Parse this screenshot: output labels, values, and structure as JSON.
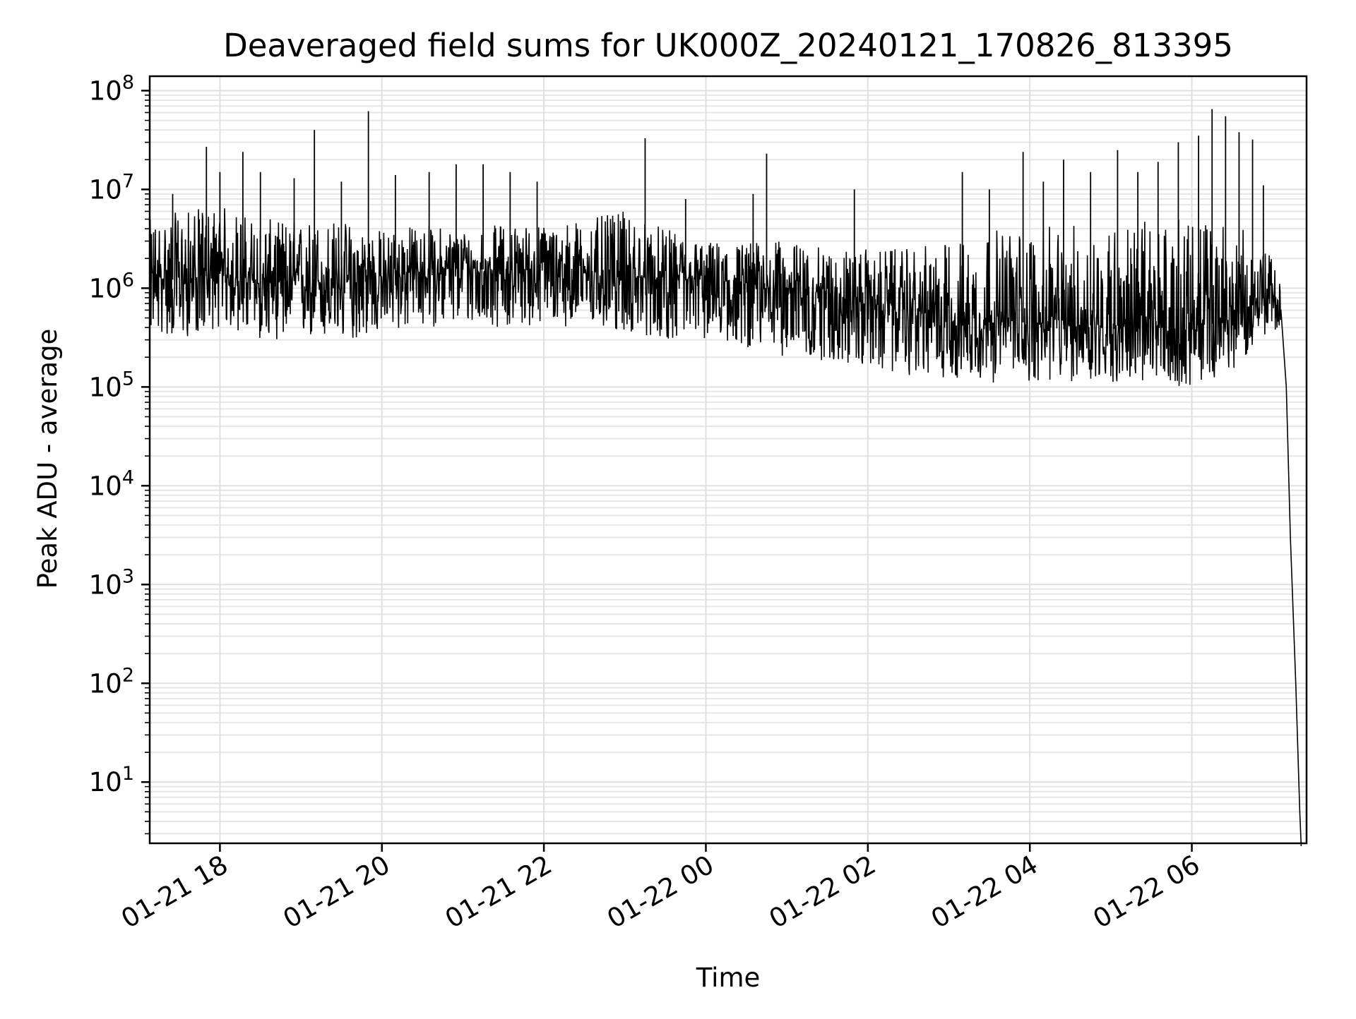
{
  "chart_data": {
    "type": "line",
    "title": "Deaveraged field sums for UK000Z_20240121_170826_813395",
    "xlabel": "Time",
    "ylabel": "Peak ADU - average",
    "x_ticks": [
      "01-21 18",
      "01-21 20",
      "01-21 22",
      "01-22 00",
      "01-22 02",
      "01-22 04",
      "01-22 06"
    ],
    "y_ticks": [
      {
        "base": "10",
        "exp": "1"
      },
      {
        "base": "10",
        "exp": "2"
      },
      {
        "base": "10",
        "exp": "3"
      },
      {
        "base": "10",
        "exp": "4"
      },
      {
        "base": "10",
        "exp": "5"
      },
      {
        "base": "10",
        "exp": "6"
      },
      {
        "base": "10",
        "exp": "7"
      },
      {
        "base": "10",
        "exp": "8"
      }
    ],
    "yscale": "log",
    "xlim": [
      "2024-01-21 17:08",
      "2024-01-22 07:25"
    ],
    "ylim": [
      2.4,
      140000000
    ],
    "grid": true,
    "line_color": "#000000",
    "series": [
      {
        "x": [
          "2024-01-21 17:08",
          "2024-01-21 17:30",
          "2024-01-21 18:00",
          "2024-01-21 18:30",
          "2024-01-21 19:00",
          "2024-01-21 19:30",
          "2024-01-21 20:00",
          "2024-01-21 20:30",
          "2024-01-21 21:00",
          "2024-01-21 21:30",
          "2024-01-21 22:00",
          "2024-01-21 22:30",
          "2024-01-21 23:00",
          "2024-01-21 23:30",
          "2024-01-22 00:00",
          "2024-01-22 00:30",
          "2024-01-22 01:00",
          "2024-01-22 01:30",
          "2024-01-22 02:00",
          "2024-01-22 02:30",
          "2024-01-22 03:00",
          "2024-01-22 03:30",
          "2024-01-22 04:00",
          "2024-01-22 04:30",
          "2024-01-22 05:00",
          "2024-01-22 05:30",
          "2024-01-22 06:00",
          "2024-01-22 06:30",
          "2024-01-22 07:00",
          "2024-01-22 07:05",
          "2024-01-22 07:10",
          "2024-01-22 07:13",
          "2024-01-22 07:17",
          "2024-01-22 07:20"
        ],
        "y_median": [
          1300000,
          1200000,
          1400000,
          1100000,
          1200000,
          1100000,
          1300000,
          1500000,
          1600000,
          1500000,
          1600000,
          1500000,
          1300000,
          1200000,
          1200000,
          1100000,
          1000000,
          900000,
          700000,
          600000,
          500000,
          450000,
          450000,
          420000,
          420000,
          400000,
          380000,
          500000,
          900000,
          700000,
          100000,
          3000,
          100,
          5
        ],
        "y_low": [
          350000,
          300000,
          400000,
          300000,
          300000,
          280000,
          350000,
          400000,
          420000,
          400000,
          420000,
          400000,
          350000,
          300000,
          300000,
          250000,
          200000,
          180000,
          150000,
          130000,
          120000,
          110000,
          110000,
          110000,
          110000,
          105000,
          100000,
          150000,
          400000,
          300000,
          100000,
          3000,
          100,
          5
        ],
        "y_high": [
          5000000,
          6000000,
          7000000,
          5000000,
          5000000,
          5000000,
          4000000,
          4500000,
          4000000,
          4500000,
          4500000,
          5000000,
          6000000,
          4000000,
          3000000,
          3000000,
          3000000,
          2500000,
          2500000,
          2500000,
          3000000,
          4000000,
          4000000,
          4500000,
          4500000,
          5000000,
          5000000,
          5000000,
          2000000,
          1200000,
          100000,
          3000,
          100,
          5
        ],
        "spikes": [
          {
            "x": "2024-01-21 17:25",
            "y": 9000000
          },
          {
            "x": "2024-01-21 17:50",
            "y": 27000000
          },
          {
            "x": "2024-01-21 18:00",
            "y": 15000000
          },
          {
            "x": "2024-01-21 18:17",
            "y": 24000000
          },
          {
            "x": "2024-01-21 18:30",
            "y": 15000000
          },
          {
            "x": "2024-01-21 18:55",
            "y": 13000000
          },
          {
            "x": "2024-01-21 19:10",
            "y": 40000000
          },
          {
            "x": "2024-01-21 19:30",
            "y": 12000000
          },
          {
            "x": "2024-01-21 19:50",
            "y": 62000000
          },
          {
            "x": "2024-01-21 20:10",
            "y": 14000000
          },
          {
            "x": "2024-01-21 20:35",
            "y": 15000000
          },
          {
            "x": "2024-01-21 20:55",
            "y": 18000000
          },
          {
            "x": "2024-01-21 21:15",
            "y": 18000000
          },
          {
            "x": "2024-01-21 21:35",
            "y": 15000000
          },
          {
            "x": "2024-01-21 21:55",
            "y": 12000000
          },
          {
            "x": "2024-01-21 23:15",
            "y": 33000000
          },
          {
            "x": "2024-01-21 23:45",
            "y": 8000000
          },
          {
            "x": "2024-01-22 00:35",
            "y": 9000000
          },
          {
            "x": "2024-01-22 00:45",
            "y": 23000000
          },
          {
            "x": "2024-01-22 01:50",
            "y": 10000000
          },
          {
            "x": "2024-01-22 03:10",
            "y": 15000000
          },
          {
            "x": "2024-01-22 03:30",
            "y": 10000000
          },
          {
            "x": "2024-01-22 03:55",
            "y": 24000000
          },
          {
            "x": "2024-01-22 04:10",
            "y": 12000000
          },
          {
            "x": "2024-01-22 04:25",
            "y": 20000000
          },
          {
            "x": "2024-01-22 04:45",
            "y": 15000000
          },
          {
            "x": "2024-01-22 05:05",
            "y": 25000000
          },
          {
            "x": "2024-01-22 05:20",
            "y": 15000000
          },
          {
            "x": "2024-01-22 05:35",
            "y": 19000000
          },
          {
            "x": "2024-01-22 05:50",
            "y": 30000000
          },
          {
            "x": "2024-01-22 06:05",
            "y": 35000000
          },
          {
            "x": "2024-01-22 06:15",
            "y": 65000000
          },
          {
            "x": "2024-01-22 06:25",
            "y": 55000000
          },
          {
            "x": "2024-01-22 06:35",
            "y": 38000000
          },
          {
            "x": "2024-01-22 06:45",
            "y": 32000000
          },
          {
            "x": "2024-01-22 06:53",
            "y": 11000000
          }
        ]
      }
    ]
  }
}
